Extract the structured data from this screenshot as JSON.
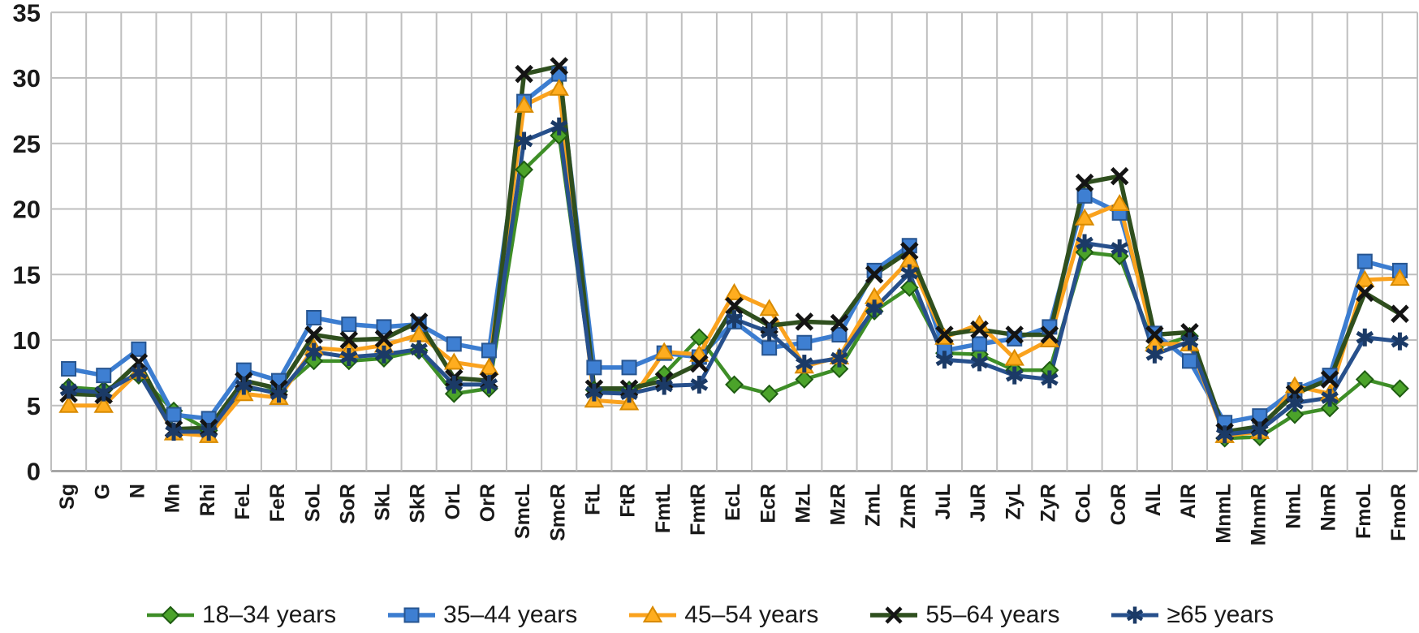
{
  "figure": {
    "background": "#ffffff",
    "grid_color": "#bfbfbf",
    "axis_line_color": "#a6a6a6",
    "tick_label_color": "#1a1a1a"
  },
  "chart_data": {
    "type": "line",
    "title": "",
    "xlabel": "",
    "ylabel": "",
    "ylim": [
      0,
      35
    ],
    "yticks": [
      0,
      5,
      10,
      15,
      20,
      25,
      30,
      35
    ],
    "grid": "both",
    "legend_position": "bottom",
    "categories": [
      "Sg",
      "G",
      "N",
      "Mn",
      "Rhi",
      "FeL",
      "FeR",
      "SoL",
      "SoR",
      "SkL",
      "SkR",
      "OrL",
      "OrR",
      "SmcL",
      "SmcR",
      "FtL",
      "FtR",
      "FmtL",
      "FmtR",
      "EcL",
      "EcR",
      "MzL",
      "MzR",
      "ZmL",
      "ZmR",
      "JuL",
      "JuR",
      "ZyL",
      "ZyR",
      "CoL",
      "CoR",
      "AlL",
      "AlR",
      "MnmL",
      "MnmR",
      "NmL",
      "NmR",
      "FmoL",
      "FmoR"
    ],
    "series": [
      {
        "name": "18–34 years",
        "marker": "diamond",
        "color": "#3E8E27",
        "marker_fill": "#4BA32A",
        "marker_stroke": "#1F5C12",
        "line_width": 4.5,
        "values": [
          6.4,
          6.2,
          7.3,
          4.6,
          3.1,
          6.3,
          6.1,
          8.4,
          8.4,
          8.6,
          9.2,
          5.9,
          6.3,
          23.0,
          25.6,
          6.2,
          6.2,
          7.4,
          10.2,
          6.6,
          5.9,
          7.0,
          7.8,
          12.2,
          14.0,
          9.0,
          8.9,
          7.7,
          7.7,
          16.7,
          16.4,
          9.4,
          10.3,
          2.5,
          2.6,
          4.3,
          4.8,
          7.0,
          6.3
        ]
      },
      {
        "name": "35–44 years",
        "marker": "square",
        "color": "#3C7DD0",
        "marker_fill": "#3E7FD2",
        "marker_stroke": "#275590",
        "line_width": 5.5,
        "values": [
          7.8,
          7.3,
          9.3,
          4.3,
          4.0,
          7.7,
          6.9,
          11.7,
          11.2,
          11.0,
          11.2,
          9.7,
          9.2,
          28.2,
          30.3,
          7.9,
          7.9,
          9.0,
          8.7,
          11.4,
          9.4,
          9.8,
          10.4,
          15.3,
          17.2,
          9.2,
          9.7,
          10.1,
          11.0,
          21.0,
          19.7,
          10.5,
          8.4,
          3.7,
          4.2,
          6.2,
          7.3,
          16.0,
          15.3
        ]
      },
      {
        "name": "45–54 years",
        "marker": "triangle",
        "color": "#FAA21E",
        "marker_fill": "#FFAD1F",
        "marker_stroke": "#D88A00",
        "line_width": 5,
        "values": [
          5.0,
          5.0,
          7.6,
          2.9,
          2.7,
          5.9,
          5.6,
          9.4,
          9.2,
          9.6,
          10.4,
          8.3,
          7.9,
          27.9,
          29.2,
          5.4,
          5.2,
          9.1,
          8.9,
          13.6,
          12.4,
          8.0,
          8.7,
          13.3,
          16.1,
          10.2,
          11.2,
          8.6,
          10.0,
          19.3,
          20.4,
          9.7,
          9.7,
          2.7,
          3.0,
          6.5,
          5.9,
          14.6,
          14.7
        ]
      },
      {
        "name": "55–64 years",
        "marker": "x",
        "color": "#2F4F1E",
        "marker_fill": "none",
        "marker_stroke": "#141414",
        "line_width": 5.5,
        "values": [
          5.9,
          5.8,
          8.3,
          3.2,
          3.3,
          6.9,
          6.3,
          10.4,
          10.0,
          10.1,
          11.4,
          7.1,
          6.9,
          30.3,
          30.9,
          6.3,
          6.3,
          6.9,
          8.2,
          12.6,
          11.1,
          11.4,
          11.3,
          15.0,
          16.8,
          10.4,
          10.8,
          10.4,
          10.4,
          22.0,
          22.5,
          10.4,
          10.6,
          3.0,
          3.4,
          5.9,
          7.0,
          13.6,
          12.0
        ]
      },
      {
        "name": "≥65 years",
        "marker": "asterisk",
        "color": "#27508C",
        "marker_fill": "none",
        "marker_stroke": "#1B3A66",
        "line_width": 5,
        "values": [
          6.2,
          6.0,
          7.5,
          3.0,
          3.0,
          6.5,
          5.9,
          9.1,
          8.7,
          8.9,
          9.3,
          6.6,
          6.6,
          25.2,
          26.3,
          6.0,
          5.9,
          6.5,
          6.6,
          11.6,
          10.6,
          8.2,
          8.6,
          12.4,
          15.1,
          8.5,
          8.3,
          7.3,
          7.0,
          17.4,
          17.0,
          8.9,
          9.9,
          2.8,
          3.1,
          5.2,
          5.6,
          10.2,
          9.9
        ]
      }
    ]
  }
}
